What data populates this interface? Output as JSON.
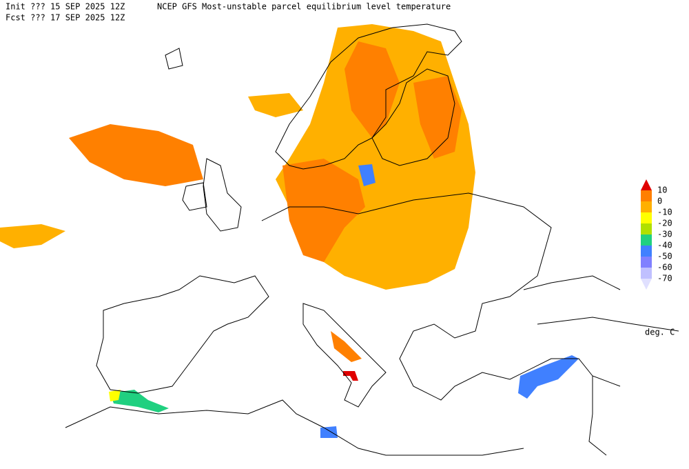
{
  "header": {
    "init": "Init  ??? 15 SEP 2025 12Z",
    "title": "NCEP GFS Most-unstable parcel equilibrium level temperature",
    "fcst": "Fcst ??? 17 SEP 2025 12Z"
  },
  "legend": {
    "labels": [
      10,
      0,
      -10,
      -20,
      -30,
      -40,
      -50,
      -60,
      -70
    ],
    "colors": [
      "#e00000",
      "#ff7f00",
      "#ffb000",
      "#ffff00",
      "#b0e000",
      "#20d080",
      "#4080ff",
      "#8080ff",
      "#c0c0ff",
      "#e0e0ff"
    ],
    "unit": "deg. C"
  }
}
